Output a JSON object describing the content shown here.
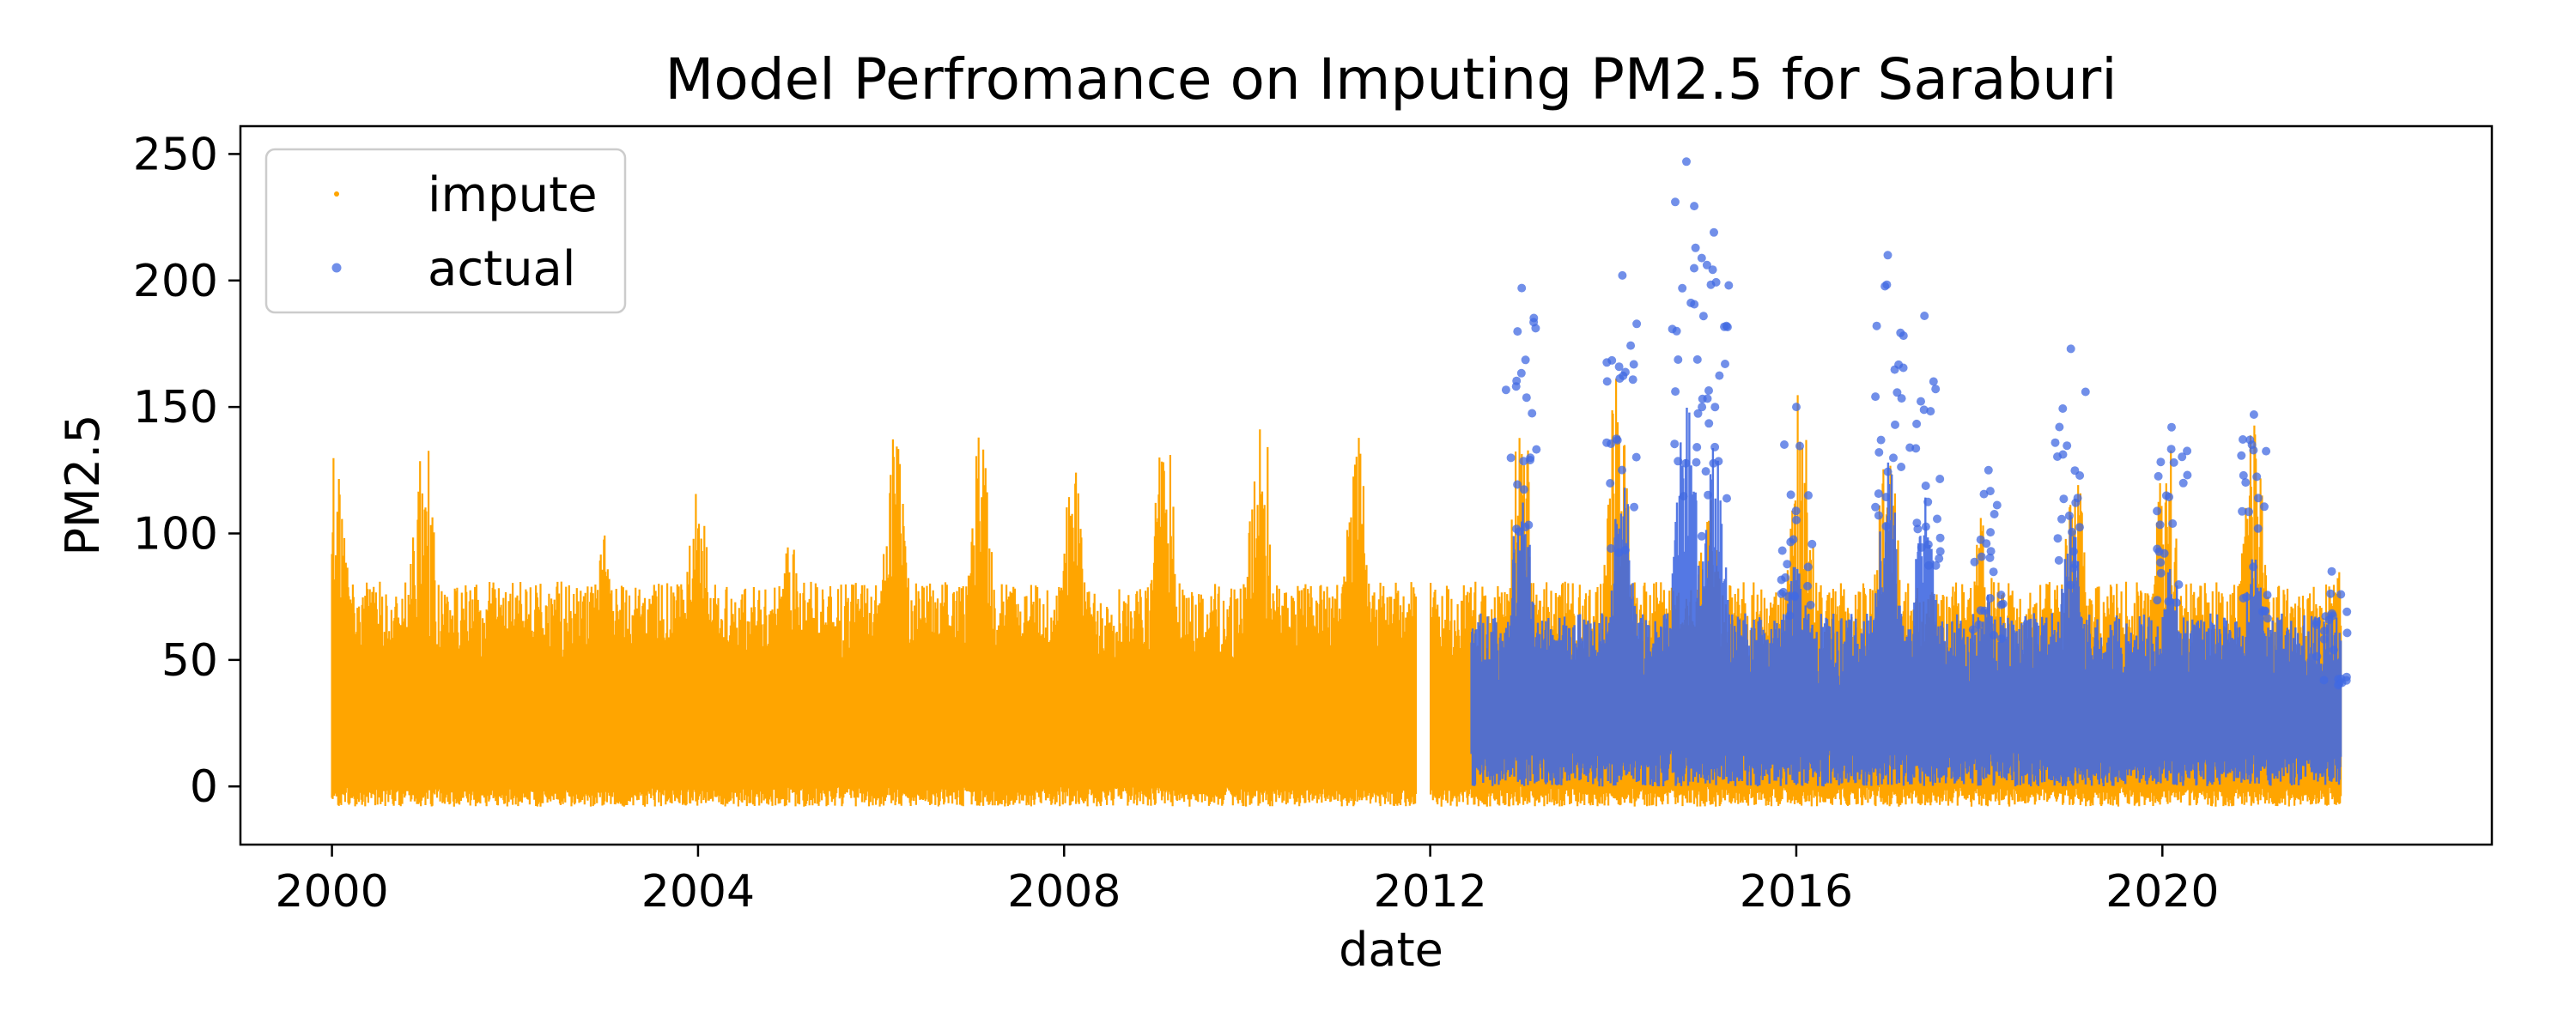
{
  "chart_data": {
    "type": "scatter",
    "title": "Model Perfromance on Imputing PM2.5 for Saraburi",
    "xlabel": "date",
    "ylabel": "PM2.5",
    "xlim": [
      1999.0,
      2023.6
    ],
    "ylim": [
      -23,
      261
    ],
    "xticks": [
      2000,
      2004,
      2008,
      2012,
      2016,
      2020
    ],
    "xtick_labels": [
      "2000",
      "2004",
      "2008",
      "2012",
      "2016",
      "2020"
    ],
    "yticks": [
      0,
      50,
      100,
      150,
      200,
      250
    ],
    "ytick_labels": [
      "0",
      "50",
      "100",
      "150",
      "200",
      "250"
    ],
    "grid": false,
    "legend": {
      "placement": "top-left",
      "entries": [
        "impute",
        "actual"
      ]
    },
    "series": [
      {
        "name": "impute",
        "color": "#FFA500",
        "date_range": [
          2000.0,
          2021.95
        ],
        "typical_range": [
          -8,
          90
        ],
        "seasonal_peaks": [
          {
            "x": 2000.05,
            "y": 135
          },
          {
            "x": 2001.0,
            "y": 145
          },
          {
            "x": 2002.1,
            "y": 80
          },
          {
            "x": 2003.0,
            "y": 105
          },
          {
            "x": 2004.0,
            "y": 120
          },
          {
            "x": 2005.0,
            "y": 100
          },
          {
            "x": 2006.15,
            "y": 145
          },
          {
            "x": 2007.1,
            "y": 145
          },
          {
            "x": 2008.1,
            "y": 135
          },
          {
            "x": 2009.1,
            "y": 150
          },
          {
            "x": 2010.15,
            "y": 155
          },
          {
            "x": 2011.2,
            "y": 140
          },
          {
            "x": 2012.4,
            "y": 60
          },
          {
            "x": 2013.0,
            "y": 150
          },
          {
            "x": 2014.05,
            "y": 165
          },
          {
            "x": 2015.05,
            "y": 120
          },
          {
            "x": 2016.05,
            "y": 160
          },
          {
            "x": 2017.0,
            "y": 140
          },
          {
            "x": 2018.05,
            "y": 120
          },
          {
            "x": 2019.05,
            "y": 135
          },
          {
            "x": 2020.05,
            "y": 145
          },
          {
            "x": 2021.0,
            "y": 145
          },
          {
            "x": 2021.9,
            "y": 95
          }
        ]
      },
      {
        "name": "actual",
        "color": "#4169E1",
        "date_range": [
          2012.45,
          2021.95
        ],
        "typical_range": [
          0,
          110
        ],
        "seasonal_peaks": [
          {
            "x": 2013.0,
            "y": 197
          },
          {
            "x": 2014.1,
            "y": 202
          },
          {
            "x": 2014.8,
            "y": 247
          },
          {
            "x": 2015.1,
            "y": 219
          },
          {
            "x": 2016.0,
            "y": 150
          },
          {
            "x": 2017.0,
            "y": 210
          },
          {
            "x": 2017.4,
            "y": 186
          },
          {
            "x": 2018.1,
            "y": 125
          },
          {
            "x": 2019.0,
            "y": 173
          },
          {
            "x": 2020.1,
            "y": 142
          },
          {
            "x": 2021.0,
            "y": 147
          },
          {
            "x": 2021.85,
            "y": 85
          }
        ]
      }
    ]
  }
}
